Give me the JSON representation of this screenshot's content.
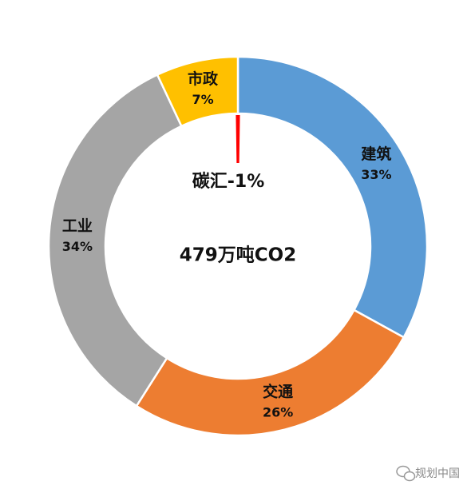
{
  "chart_data": {
    "type": "donut",
    "categories": [
      "建筑",
      "交通",
      "工业",
      "市政"
    ],
    "values": [
      33,
      26,
      34,
      7
    ],
    "value_labels": [
      "33%",
      "26%",
      "34%",
      "7%"
    ],
    "colors": [
      "#5b9bd5",
      "#ed7d31",
      "#a5a5a5",
      "#ffc000"
    ],
    "center_text": "479万吨CO2",
    "sink": {
      "label": "碳汇-1%",
      "value": -1,
      "color": "#ff0000"
    }
  },
  "watermark": "规划中国"
}
